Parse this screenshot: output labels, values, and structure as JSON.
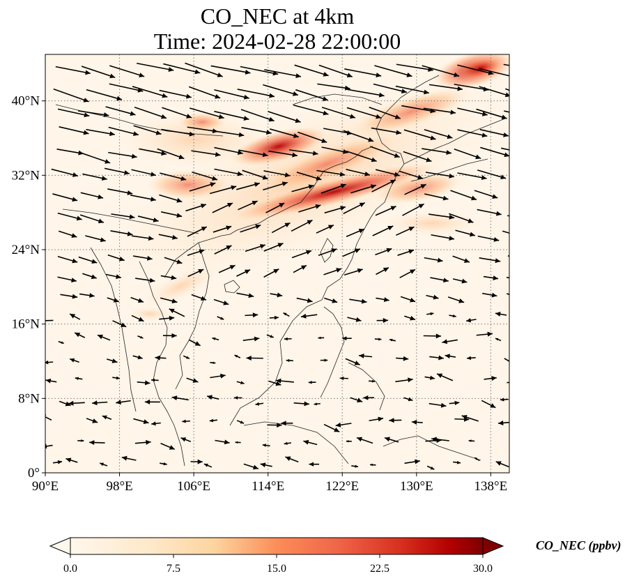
{
  "title_line1": "CO_NEC at 4km",
  "title_line2": "Time: 2024-02-28 22:00:00",
  "map": {
    "lon_range": [
      90,
      140
    ],
    "lat_range": [
      0,
      45
    ],
    "lon_ticks": [
      {
        "value": 90,
        "label": "90°E"
      },
      {
        "value": 98,
        "label": "98°E"
      },
      {
        "value": 106,
        "label": "106°E"
      },
      {
        "value": 114,
        "label": "114°E"
      },
      {
        "value": 122,
        "label": "122°E"
      },
      {
        "value": 130,
        "label": "130°E"
      },
      {
        "value": 138,
        "label": "138°E"
      }
    ],
    "lat_ticks": [
      {
        "value": 0,
        "label": "0°"
      },
      {
        "value": 8,
        "label": "8°N"
      },
      {
        "value": 16,
        "label": "16°N"
      },
      {
        "value": 24,
        "label": "24°N"
      },
      {
        "value": 32,
        "label": "32°N"
      },
      {
        "value": 40,
        "label": "40°N"
      }
    ],
    "gridlines": true,
    "colors": {
      "background": "#fff5e8",
      "coast": "#222222",
      "arrow": "#000000",
      "grid": "#777777"
    }
  },
  "colorbar": {
    "title": "CO_NEC (ppbv)",
    "min": 0,
    "max": 30,
    "extend": "both",
    "colormap": "OrRd",
    "ticks": [
      {
        "value": 0,
        "label": "0.0"
      },
      {
        "value": 7.5,
        "label": "7.5"
      },
      {
        "value": 15,
        "label": "15.0"
      },
      {
        "value": 22.5,
        "label": "22.5"
      },
      {
        "value": 30,
        "label": "30.0"
      }
    ]
  }
}
